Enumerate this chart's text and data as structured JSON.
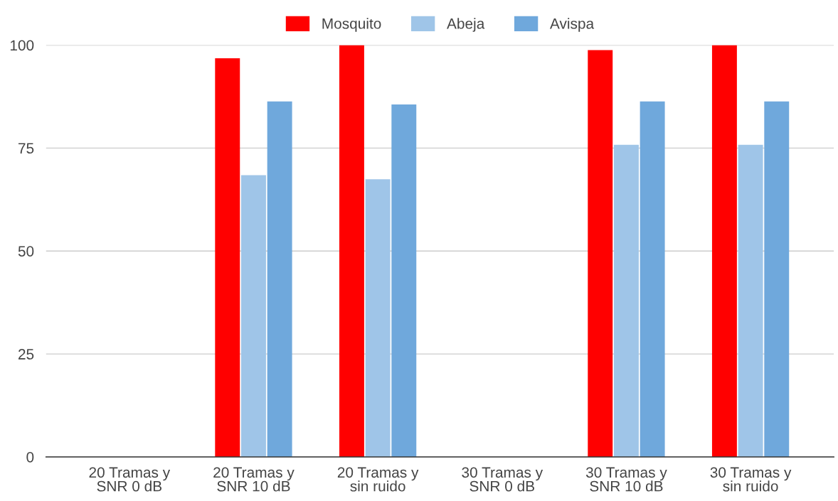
{
  "chart_data": {
    "type": "bar",
    "categories": [
      "20 Tramas y\nSNR 0 dB",
      "20 Tramas y\nSNR 10 dB",
      "20 Tramas y\nsin ruido",
      "30 Tramas y\nSNR 0 dB",
      "30 Tramas y\nSNR 10 dB",
      "30 Tramas y\nsin ruido"
    ],
    "series": [
      {
        "name": "Mosquito",
        "color": "#ff0000",
        "values": [
          null,
          96.8,
          100,
          null,
          98.8,
          100
        ]
      },
      {
        "name": "Abeja",
        "color": "#9fc5e8",
        "values": [
          null,
          68.4,
          67.4,
          null,
          75.8,
          75.8
        ]
      },
      {
        "name": "Avispa",
        "color": "#6fa8dc",
        "values": [
          null,
          86.3,
          85.6,
          null,
          86.3,
          86.3
        ]
      }
    ],
    "ylim": [
      0,
      100
    ],
    "yticks": [
      0,
      25,
      50,
      75,
      100
    ],
    "grid": "y",
    "legend": "top"
  }
}
